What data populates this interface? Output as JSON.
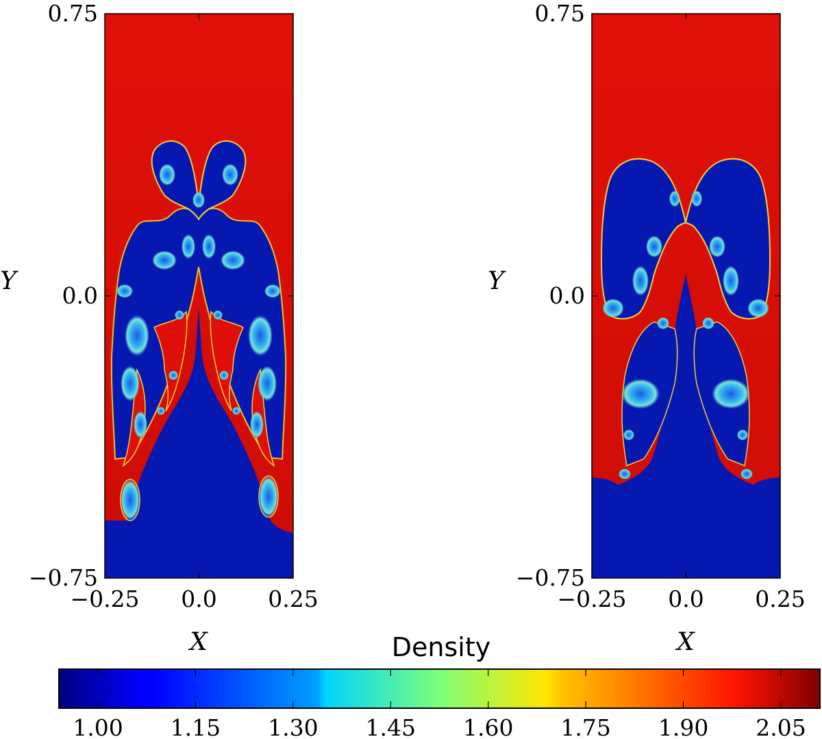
{
  "chart_data": [
    {
      "type": "heatmap",
      "title": "",
      "xlabel": "X",
      "ylabel": "Y",
      "xlim": [
        -0.25,
        0.25
      ],
      "ylim": [
        -0.75,
        0.75
      ],
      "x_ticks": [
        -0.25,
        0.0,
        0.25
      ],
      "x_tick_labels": [
        "−0.25",
        "0.0",
        "0.25"
      ],
      "y_ticks": [
        -0.75,
        0.0,
        0.75
      ],
      "y_tick_labels": [
        "−0.75",
        "0.0",
        "0.75"
      ],
      "field": "Density",
      "interface_y_at_walls": -0.63,
      "heavy_fluid_density": 2.0,
      "light_fluid_density": 1.0,
      "description_kind": "Rayleigh-Taylor mushroom plume, multi-mode"
    },
    {
      "type": "heatmap",
      "title": "",
      "xlabel": "X",
      "ylabel": "Y",
      "xlim": [
        -0.25,
        0.25
      ],
      "ylim": [
        -0.75,
        0.75
      ],
      "x_ticks": [
        -0.25,
        0.0,
        0.25
      ],
      "x_tick_labels": [
        "−0.25",
        "0.0",
        "0.25"
      ],
      "y_ticks": [
        -0.75,
        0.0,
        0.75
      ],
      "y_tick_labels": [
        "−0.75",
        "0.0",
        "0.75"
      ],
      "field": "Density",
      "interface_y_at_walls": -0.48,
      "heavy_fluid_density": 2.0,
      "light_fluid_density": 1.0,
      "description_kind": "Rayleigh-Taylor mushroom plume, single cap"
    }
  ],
  "colorbar": {
    "label": "Density",
    "min": 0.94,
    "max": 2.11,
    "ticks": [
      1.0,
      1.15,
      1.3,
      1.45,
      1.6,
      1.75,
      1.9,
      2.05
    ],
    "tick_labels": [
      "1.00",
      "1.15",
      "1.30",
      "1.45",
      "1.60",
      "1.75",
      "1.90",
      "2.05"
    ],
    "colormap": "jet"
  },
  "colors": {
    "heavy": "#dd0f08",
    "light": "#0618b0",
    "mix_cyan": "#35b8f0",
    "mix_yellow": "#f0e020",
    "axis": "#000000"
  }
}
